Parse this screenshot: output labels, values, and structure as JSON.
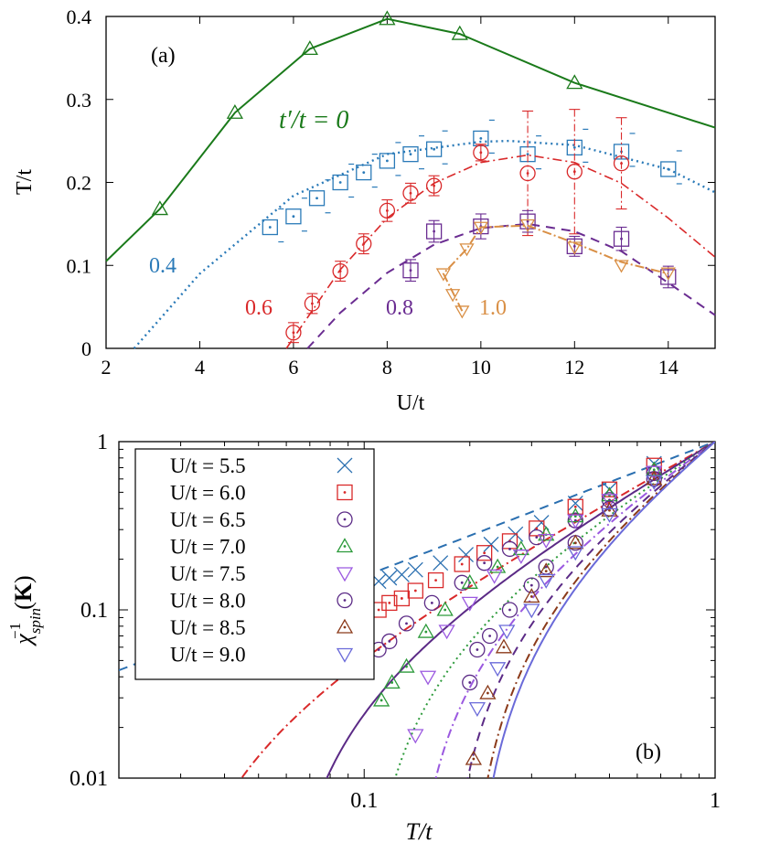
{
  "chart_data": [
    {
      "panel_label": "(a)",
      "type": "line",
      "xlabel": "U/t",
      "ylabel": "T/t",
      "xlim": [
        2,
        15
      ],
      "ylim": [
        0,
        0.4
      ],
      "xticks": [
        2,
        4,
        6,
        8,
        10,
        12,
        14
      ],
      "xtick_labels": [
        "2",
        "4",
        "6",
        "8",
        "10",
        "12",
        "14"
      ],
      "yticks": [
        0,
        0.1,
        0.2,
        0.3,
        0.4
      ],
      "ytick_labels": [
        "0",
        "0.1",
        "0.2",
        "0.3",
        "0.4"
      ],
      "series": [
        {
          "name": "t'/t = 0",
          "label": "t′/t = 0",
          "color": "#1a7a1a",
          "marker": "triangle-up",
          "line": "solid",
          "x": [
            2.0,
            3.15,
            4.75,
            6.35,
            8.0,
            9.55,
            12.0,
            15.0
          ],
          "y": [
            0.105,
            0.168,
            0.284,
            0.361,
            0.397,
            0.379,
            0.32,
            0.266
          ],
          "markers_x": [
            3.15,
            4.75,
            6.35,
            8.0,
            9.55,
            12.0
          ],
          "markers_y": [
            0.168,
            0.284,
            0.361,
            0.397,
            0.379,
            0.32
          ]
        },
        {
          "name": "0.4",
          "label": "0.4",
          "color": "#2a7ab8",
          "marker": "square",
          "line": "dotted",
          "x": [
            5.5,
            6.0,
            6.5,
            7.0,
            7.5,
            8.0,
            8.5,
            9.0,
            10.0,
            11.0,
            12.0,
            13.0,
            14.0
          ],
          "y": [
            0.146,
            0.159,
            0.181,
            0.2,
            0.212,
            0.226,
            0.234,
            0.24,
            0.253,
            0.234,
            0.242,
            0.237,
            0.216
          ],
          "fit_x": [
            2.6,
            4.0,
            6.0,
            8.0,
            10.0,
            10.6,
            12.0,
            14.0,
            15.0
          ],
          "fit_y": [
            0.0,
            0.09,
            0.184,
            0.234,
            0.249,
            0.25,
            0.245,
            0.216,
            0.188
          ]
        },
        {
          "name": "0.6",
          "label": "0.6",
          "color": "#d9292a",
          "marker": "circle-dot",
          "line": "dash-dot",
          "x": [
            6.0,
            6.4,
            7.0,
            7.5,
            8.0,
            8.5,
            9.0,
            10.0,
            11.0,
            12.0,
            13.0
          ],
          "y": [
            0.019,
            0.054,
            0.093,
            0.126,
            0.166,
            0.187,
            0.196,
            0.236,
            0.211,
            0.213,
            0.223
          ],
          "err": [
            0.012,
            0.012,
            0.012,
            0.012,
            0.013,
            0.012,
            0.012,
            0.01,
            0.075,
            0.075,
            0.055
          ],
          "fit_x": [
            5.85,
            7.0,
            8.0,
            9.0,
            10.0,
            11.0,
            12.0,
            13.0,
            14.0,
            15.0
          ],
          "fit_y": [
            0.0,
            0.095,
            0.157,
            0.199,
            0.224,
            0.233,
            0.224,
            0.199,
            0.157,
            0.11
          ]
        },
        {
          "name": "0.8",
          "label": "0.8",
          "color": "#6a2c91",
          "marker": "square",
          "line": "dashed",
          "x": [
            8.5,
            9.0,
            10.0,
            11.0,
            12.0,
            13.0,
            14.0
          ],
          "y": [
            0.094,
            0.141,
            0.147,
            0.153,
            0.123,
            0.132,
            0.086
          ],
          "err": [
            0.013,
            0.013,
            0.015,
            0.013,
            0.012,
            0.014,
            0.013
          ],
          "fit_x": [
            6.3,
            7.0,
            8.0,
            9.0,
            10.0,
            11.0,
            12.0,
            13.0,
            14.0,
            15.0
          ],
          "fit_y": [
            0.0,
            0.043,
            0.091,
            0.125,
            0.145,
            0.15,
            0.141,
            0.117,
            0.079,
            0.04
          ]
        },
        {
          "name": "1.0",
          "label": "1.0",
          "color": "#d98f45",
          "marker": "triangle-down",
          "line": "dash-dot",
          "x": [
            9.6,
            9.4,
            9.2,
            9.7,
            10.0,
            11.0,
            12.0,
            13.0,
            14.0
          ],
          "y": [
            0.045,
            0.065,
            0.09,
            0.12,
            0.146,
            0.149,
            0.122,
            0.1,
            0.091
          ],
          "curve_x": [
            9.6,
            9.2,
            9.7,
            10.0,
            11.0,
            12.0,
            13.0,
            14.0
          ],
          "curve_y": [
            0.045,
            0.09,
            0.12,
            0.146,
            0.148,
            0.127,
            0.104,
            0.09
          ]
        }
      ]
    },
    {
      "panel_label": "(b)",
      "type": "scatter",
      "xscale": "log",
      "yscale": "log",
      "xlabel": "T/t",
      "ylabel": "χ_spin^-1(K)",
      "xlim": [
        0.02,
        1
      ],
      "ylim": [
        0.01,
        1
      ],
      "xtick_labels": [
        "0.1",
        "1"
      ],
      "ytick_labels": [
        "0.01",
        "0.1",
        "1"
      ],
      "legend_position": "top-left",
      "series": [
        {
          "name": "U/t = 5.5",
          "color": "#2a6fb0",
          "marker": "cross",
          "line": "dashed",
          "Tc": 0.0,
          "x": [
            0.11,
            0.118,
            0.128,
            0.14,
            0.165,
            0.195,
            0.23,
            0.27,
            0.32,
            0.4,
            0.5,
            0.67
          ],
          "y": [
            0.148,
            0.155,
            0.162,
            0.173,
            0.19,
            0.213,
            0.245,
            0.282,
            0.33,
            0.43,
            0.52,
            0.74
          ]
        },
        {
          "name": "U/t = 6.0",
          "color": "#d9292a",
          "marker": "square-dot",
          "line": "dash-dot",
          "Tc": 0.027,
          "x": [
            0.11,
            0.118,
            0.128,
            0.14,
            0.16,
            0.19,
            0.22,
            0.26,
            0.31,
            0.4,
            0.5,
            0.67
          ],
          "y": [
            0.1,
            0.11,
            0.117,
            0.13,
            0.15,
            0.187,
            0.218,
            0.256,
            0.305,
            0.41,
            0.52,
            0.72
          ]
        },
        {
          "name": "U/t = 6.5",
          "color": "#5b2a86",
          "marker": "circle-dot",
          "line": "solid",
          "Tc": 0.058,
          "x": [
            0.11,
            0.118,
            0.132,
            0.156,
            0.19,
            0.22,
            0.26,
            0.31,
            0.4,
            0.5,
            0.67
          ],
          "y": [
            0.058,
            0.065,
            0.083,
            0.11,
            0.145,
            0.19,
            0.23,
            0.27,
            0.34,
            0.45,
            0.65
          ]
        },
        {
          "name": "U/t = 7.0",
          "color": "#2c9a3a",
          "marker": "triangle-up-dot",
          "line": "dotted",
          "Tc": 0.1,
          "x": [
            0.112,
            0.12,
            0.132,
            0.15,
            0.17,
            0.2,
            0.24,
            0.28,
            0.33,
            0.4,
            0.5,
            0.67
          ],
          "y": [
            0.029,
            0.037,
            0.046,
            0.074,
            0.1,
            0.145,
            0.18,
            0.23,
            0.28,
            0.36,
            0.48,
            0.68
          ]
        },
        {
          "name": "U/t = 7.5",
          "color": "#9b59e0",
          "marker": "triangle-down",
          "line": "dash-dot",
          "Tc": 0.135,
          "x": [
            0.14,
            0.152,
            0.172,
            0.2,
            0.235,
            0.28,
            0.33,
            0.4,
            0.5,
            0.67
          ],
          "y": [
            0.018,
            0.04,
            0.075,
            0.11,
            0.16,
            0.21,
            0.26,
            0.34,
            0.45,
            0.66
          ]
        },
        {
          "name": "U/t = 8.0",
          "color": "#5b2a86",
          "marker": "circle-dot",
          "line": "dashed",
          "Tc": 0.17,
          "x": [
            0.2,
            0.21,
            0.228,
            0.26,
            0.3,
            0.33,
            0.4,
            0.5,
            0.67
          ],
          "y": [
            0.037,
            0.058,
            0.07,
            0.1,
            0.14,
            0.18,
            0.25,
            0.4,
            0.6
          ]
        },
        {
          "name": "U/t = 8.5",
          "color": "#8b3a1a",
          "marker": "triangle-up-dot",
          "line": "dash-dot",
          "Tc": 0.195,
          "x": [
            0.205,
            0.225,
            0.25,
            0.3,
            0.33,
            0.4,
            0.5,
            0.67
          ],
          "y": [
            0.013,
            0.032,
            0.06,
            0.12,
            0.17,
            0.25,
            0.39,
            0.6
          ]
        },
        {
          "name": "U/t = 9.0",
          "color": "#6a6ad9",
          "marker": "triangle-down",
          "line": "solid",
          "Tc": 0.2,
          "x": [
            0.21,
            0.24,
            0.255,
            0.3,
            0.33,
            0.4,
            0.5,
            0.67
          ],
          "y": [
            0.026,
            0.045,
            0.075,
            0.1,
            0.15,
            0.22,
            0.37,
            0.58
          ]
        }
      ]
    }
  ]
}
